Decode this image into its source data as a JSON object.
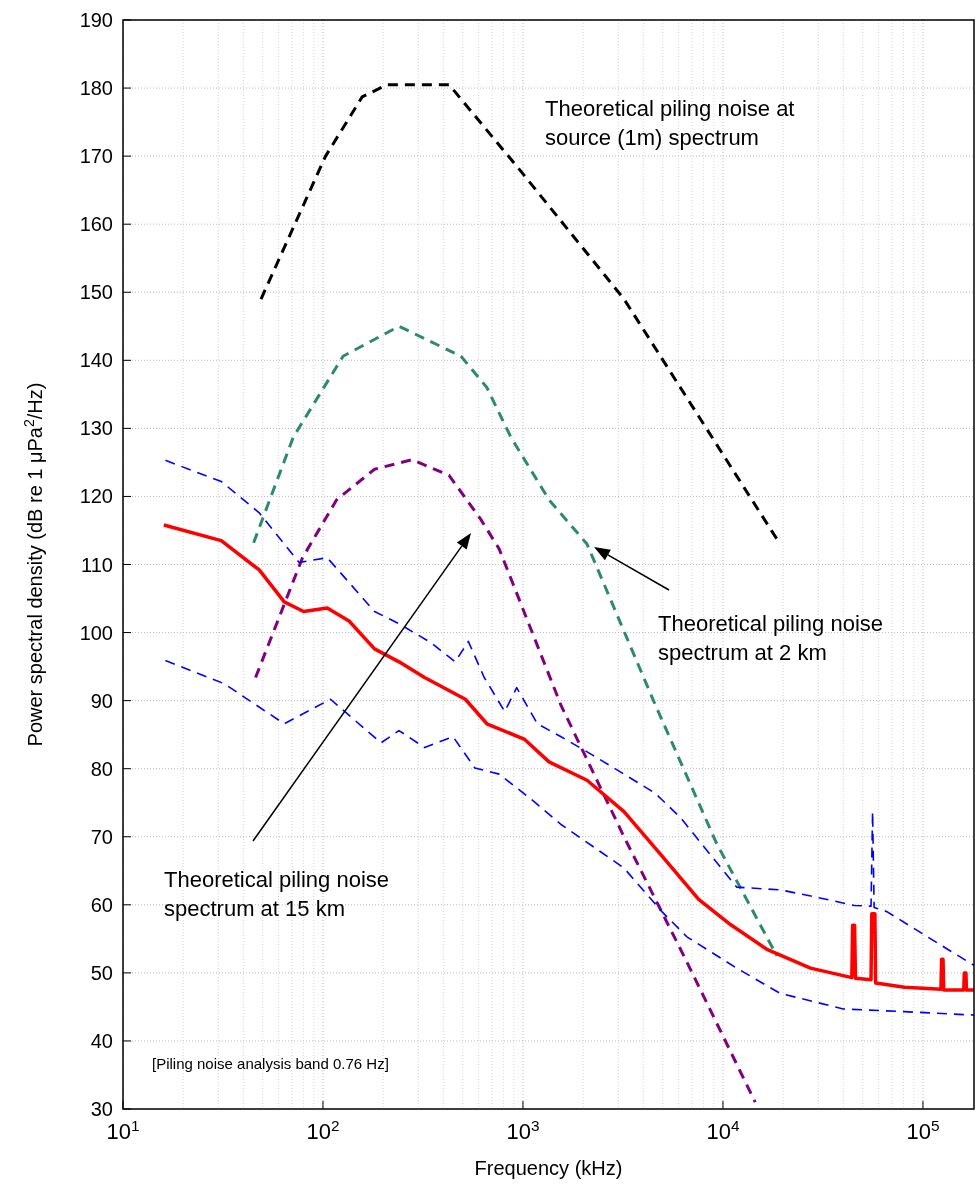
{
  "chart_data": {
    "type": "line",
    "xlabel": "Frequency (kHz)",
    "ylabel": "Power spectral density (dB re 1 μPa$^{2}$/Hz)",
    "log": "x",
    "grid": true,
    "xlim": [
      10,
      180000
    ],
    "ylim": [
      30,
      190
    ],
    "xticks": [
      {
        "value": 10,
        "label": "10$^{1}$"
      },
      {
        "value": 100,
        "label": "10$^{2}$"
      },
      {
        "value": 1000,
        "label": "10$^{3}$"
      },
      {
        "value": 10000,
        "label": "10$^{4}$"
      },
      {
        "value": 100000,
        "label": "10$^{5}$"
      }
    ],
    "yticks": [
      30,
      40,
      50,
      60,
      70,
      80,
      90,
      100,
      110,
      120,
      130,
      140,
      150,
      160,
      170,
      180,
      190
    ],
    "series": [
      {
        "color": "#000000",
        "line_style": "dashed",
        "x": [
          49,
          103,
          157,
          209,
          427,
          944,
          3200,
          19300
        ],
        "values": [
          149,
          170,
          178.7,
          180.5,
          180.5,
          168.3,
          149,
          113
        ]
      },
      {
        "color": "#2e8b6a",
        "line_style": "dashed",
        "x": [
          45,
          71,
          126,
          240,
          490,
          660,
          870,
          1350,
          2090,
          4600,
          9300,
          18600
        ],
        "values": [
          113.2,
          128.7,
          140.6,
          145,
          140.6,
          136,
          128.7,
          119.5,
          113,
          89.3,
          69,
          52.5
        ]
      },
      {
        "color": "#800080",
        "line_style": "dashed",
        "x": [
          46,
          79,
          117,
          181,
          279,
          427,
          613,
          760,
          1550,
          3200,
          6600,
          14500
        ],
        "values": [
          93.4,
          111,
          119.5,
          124,
          125.4,
          123.1,
          116.7,
          112.3,
          89.3,
          70,
          51.6,
          31
        ]
      },
      {
        "color": "#0000ff",
        "line_style": "dashed",
        "x": [
          16.3,
          31,
          48,
          76,
          105,
          181,
          240,
          347,
          458,
          533,
          640,
          810,
          930,
          1180,
          1550,
          2230,
          3200,
          4580,
          6140,
          8200,
          11700,
          19300,
          27500,
          45400,
          55000,
          56000,
          57000,
          66000,
          94000,
          134000,
          180000
        ],
        "values": [
          125.3,
          122.2,
          117.6,
          110.3,
          111,
          103.1,
          101.3,
          98.5,
          95.7,
          98.7,
          93.4,
          88.4,
          91.9,
          86.6,
          84.7,
          82,
          79.2,
          76.4,
          72.8,
          68.2,
          62.6,
          62.2,
          61.3,
          59.9,
          59.8,
          73.7,
          59.6,
          59,
          56.2,
          53.4,
          51.1
        ]
      },
      {
        "color": "#0000ff",
        "line_style": "dashed",
        "x": [
          16.3,
          32,
          64,
          109,
          195,
          240,
          322,
          447,
          575,
          760,
          1100,
          1550,
          2230,
          3200,
          4950,
          6600,
          11700,
          19300,
          40000,
          81000,
          180000
        ],
        "values": [
          95.9,
          92.5,
          86.6,
          90.2,
          83.8,
          85.6,
          83.1,
          84.7,
          80.1,
          79.2,
          75.5,
          71.8,
          68.6,
          65.4,
          59,
          55.3,
          50.7,
          47,
          44.7,
          44.3,
          43.8
        ]
      },
      {
        "color": "#ff0000",
        "line_style": "solid",
        "x": [
          16,
          31,
          48,
          64,
          80,
          105,
          135,
          181,
          240,
          322,
          515,
          660,
          1020,
          1350,
          2090,
          3200,
          4950,
          7560,
          10900,
          16700,
          27400,
          44100,
          44500,
          45500,
          46000,
          55000,
          55500,
          57500,
          58000,
          81000,
          123000,
          124000,
          126000,
          127000,
          160000,
          161000,
          164000,
          165000,
          180000
        ],
        "values": [
          115.8,
          113.5,
          109.2,
          104.5,
          103.1,
          103.6,
          101.7,
          97.6,
          95.7,
          93.4,
          90.2,
          86.6,
          84.3,
          81,
          78.3,
          73.7,
          67.2,
          60.8,
          57.1,
          53.4,
          50.7,
          49.3,
          57,
          57,
          49.2,
          49,
          58.7,
          58.7,
          48.5,
          47.9,
          47.6,
          52,
          52,
          47.5,
          47.5,
          50,
          50,
          47.5,
          47.5
        ]
      }
    ],
    "annotations": [
      "Theoretical piling noise at source (1m) spectrum",
      "Theoretical piling noise spectrum at 2 km",
      "Theoretical piling noise spectrum at 15 km",
      "[Piling noise analysis band 0.76 Hz]"
    ]
  }
}
